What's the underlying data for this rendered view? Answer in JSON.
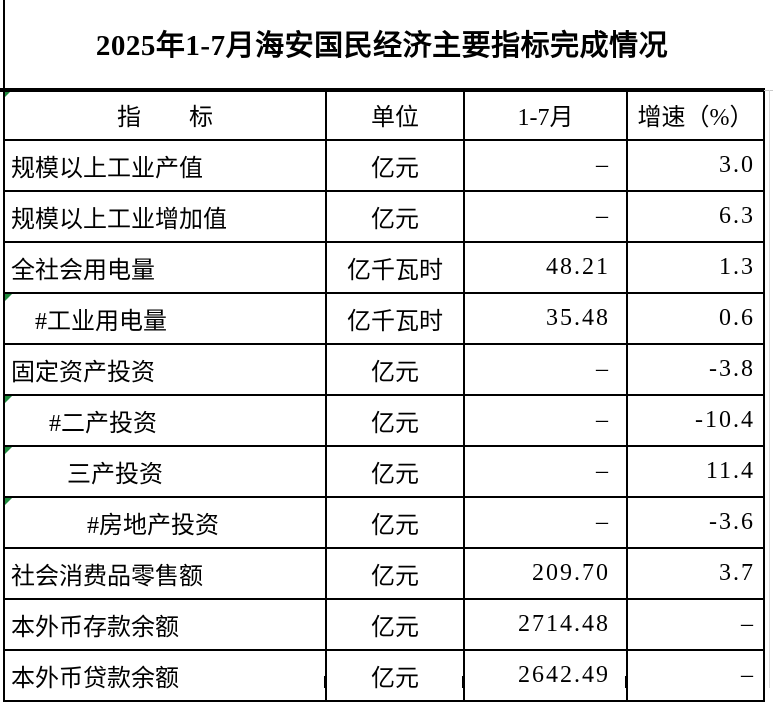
{
  "title": "2025年1-7月海安国民经济主要指标完成情况",
  "colors": {
    "flag_triangle": "#1f8a3d"
  },
  "table": {
    "columns": [
      {
        "label": "指　　标"
      },
      {
        "label": "单位"
      },
      {
        "label": "1-7月"
      },
      {
        "label": "增速（%）"
      }
    ],
    "header_flag": true,
    "rows": [
      {
        "indicator": "规模以上工业产值",
        "unit": "亿元",
        "value": "–",
        "growth": "3.0",
        "indent": 0,
        "flag": false
      },
      {
        "indicator": "规模以上工业增加值",
        "unit": "亿元",
        "value": "–",
        "growth": "6.3",
        "indent": 0,
        "flag": false
      },
      {
        "indicator": "全社会用电量",
        "unit": "亿千瓦时",
        "value": "48.21",
        "growth": "1.3",
        "indent": 0,
        "flag": false
      },
      {
        "indicator": "#工业用电量",
        "unit": "亿千瓦时",
        "value": "35.48",
        "growth": "0.6",
        "indent": 1,
        "flag": true
      },
      {
        "indicator": "固定资产投资",
        "unit": "亿元",
        "value": "–",
        "growth": "-3.8",
        "indent": 0,
        "flag": false
      },
      {
        "indicator": "#二产投资",
        "unit": "亿元",
        "value": "–",
        "growth": "-10.4",
        "indent": 2,
        "flag": true
      },
      {
        "indicator": "三产投资",
        "unit": "亿元",
        "value": "–",
        "growth": "11.4",
        "indent": 3,
        "flag": true
      },
      {
        "indicator": "#房地产投资",
        "unit": "亿元",
        "value": "–",
        "growth": "-3.6",
        "indent": 4,
        "flag": true
      },
      {
        "indicator": "社会消费品零售额",
        "unit": "亿元",
        "value": "209.70",
        "growth": "3.7",
        "indent": 0,
        "flag": false
      },
      {
        "indicator": "本外币存款余额",
        "unit": "亿元",
        "value": "2714.48",
        "growth": "–",
        "indent": 0,
        "flag": false
      },
      {
        "indicator": "本外币贷款余额",
        "unit": "亿元",
        "value": "2642.49",
        "growth": "–",
        "indent": 0,
        "flag": false
      }
    ]
  }
}
